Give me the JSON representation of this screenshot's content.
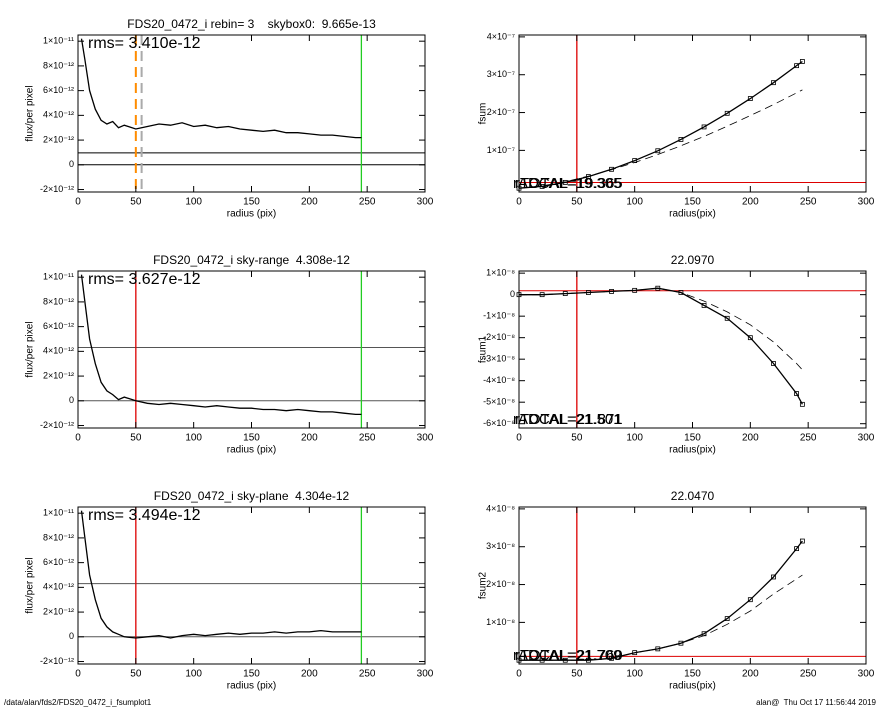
{
  "chart_data": [
    {
      "type": "line",
      "title": "FDS20_0472_i rebin= 3    skybox0:  9.665e-13",
      "xlabel": "radius (pix)",
      "ylabel": "flux/per pixel",
      "annotations": [
        "rms= 3.410e-12"
      ],
      "xlim": [
        0,
        300
      ],
      "xticks": [
        0,
        50,
        100,
        150,
        200,
        250,
        300
      ],
      "ylim": [
        -2.2e-12,
        1.05e-11
      ],
      "yticks": [
        {
          "value": -2e-12,
          "label": "-2×10⁻¹²"
        },
        0,
        {
          "value": 2e-12,
          "label": "2×10⁻¹²"
        },
        {
          "value": 4e-12,
          "label": "4×10⁻¹²"
        },
        {
          "value": 6e-12,
          "label": "6×10⁻¹²"
        },
        {
          "value": 8e-12,
          "label": "8×10⁻¹²"
        },
        {
          "value": 1e-11,
          "label": "1×10⁻¹¹"
        }
      ],
      "x": [
        3,
        6,
        10,
        15,
        20,
        25,
        30,
        35,
        40,
        50,
        60,
        70,
        80,
        90,
        100,
        110,
        120,
        130,
        140,
        150,
        160,
        170,
        180,
        190,
        200,
        210,
        220,
        230,
        240,
        245
      ],
      "series": [
        {
          "color": "#000000",
          "values": [
            1.02e-11,
            8.5e-12,
            6e-12,
            4.5e-12,
            3.6e-12,
            3.3e-12,
            3.5e-12,
            3e-12,
            3.2e-12,
            2.9e-12,
            3.1e-12,
            3.3e-12,
            3.2e-12,
            3.4e-12,
            3.1e-12,
            3.2e-12,
            3e-12,
            3.1e-12,
            2.9e-12,
            2.8e-12,
            2.7e-12,
            2.8e-12,
            2.6e-12,
            2.6e-12,
            2.5e-12,
            2.4e-12,
            2.4e-12,
            2.3e-12,
            2.2e-12,
            2.2e-12
          ]
        }
      ],
      "hlines": [
        {
          "value": 9.665e-13,
          "color": "#000000"
        },
        {
          "value": 0,
          "color": "#000000"
        }
      ],
      "vlines": [
        {
          "value": 50,
          "color": "#ff8c00",
          "dash": true
        },
        {
          "value": 55,
          "color": "#aaaaaa",
          "dash": true
        },
        {
          "value": 245,
          "color": "#22cc22"
        }
      ]
    },
    {
      "type": "line",
      "xlabel": "radius(pix)",
      "ylabel": "fsum",
      "annotations": [
        "rADCAL=19.365",
        "rTOTAL=19.305"
      ],
      "xlim": [
        0,
        300
      ],
      "xticks": [
        0,
        50,
        100,
        150,
        200,
        250,
        300
      ],
      "ylim": [
        -1e-08,
        4.05e-07
      ],
      "yticks": [
        {
          "value": 1e-07,
          "label": "1×10⁻⁷"
        },
        {
          "value": 2e-07,
          "label": "2×10⁻⁷"
        },
        {
          "value": 3e-07,
          "label": "3×10⁻⁷"
        },
        {
          "value": 4e-07,
          "label": "4×10⁻⁷"
        }
      ],
      "x": [
        0,
        20,
        40,
        60,
        80,
        100,
        120,
        140,
        160,
        180,
        200,
        220,
        240,
        245
      ],
      "series": [
        {
          "color": "#000000",
          "marker": "square",
          "values": [
            0,
            4.7e-09,
            1.54e-08,
            3.07e-08,
            5e-08,
            7.3e-08,
            9.9e-08,
            1.29e-07,
            1.62e-07,
            1.98e-07,
            2.37e-07,
            2.79e-07,
            3.24e-07,
            3.35e-07
          ]
        },
        {
          "color": "#000000",
          "dash": true,
          "values": [
            0,
            6e-09,
            1.7e-08,
            3.2e-08,
            4.9e-08,
            6.8e-08,
            8.9e-08,
            1.12e-07,
            1.37e-07,
            1.64e-07,
            1.92e-07,
            2.21e-07,
            2.52e-07,
            2.6e-07
          ]
        }
      ],
      "hlines": [
        {
          "value": 1.5e-08,
          "color": "#dd0000"
        }
      ],
      "vlines": [
        {
          "value": 50,
          "color": "#dd0000"
        }
      ]
    },
    {
      "type": "line",
      "title": "FDS20_0472_i sky-range  4.308e-12",
      "xlabel": "radius (pix)",
      "ylabel": "flux/per pixel",
      "annotations": [
        "rms= 3.627e-12"
      ],
      "xlim": [
        0,
        300
      ],
      "xticks": [
        0,
        50,
        100,
        150,
        200,
        250,
        300
      ],
      "ylim": [
        -2.2e-12,
        1.05e-11
      ],
      "yticks": [
        {
          "value": -2e-12,
          "label": "-2×10⁻¹²"
        },
        0,
        {
          "value": 2e-12,
          "label": "2×10⁻¹²"
        },
        {
          "value": 4e-12,
          "label": "4×10⁻¹²"
        },
        {
          "value": 6e-12,
          "label": "6×10⁻¹²"
        },
        {
          "value": 8e-12,
          "label": "8×10⁻¹²"
        },
        {
          "value": 1e-11,
          "label": "1×10⁻¹¹"
        }
      ],
      "x": [
        3,
        6,
        10,
        15,
        20,
        25,
        30,
        35,
        40,
        50,
        60,
        70,
        80,
        90,
        100,
        110,
        120,
        130,
        140,
        150,
        160,
        170,
        180,
        190,
        200,
        210,
        220,
        230,
        240,
        245
      ],
      "series": [
        {
          "color": "#000000",
          "values": [
            1.02e-11,
            8e-12,
            5e-12,
            3e-12,
            1.5e-12,
            8e-13,
            5e-13,
            1e-13,
            3e-13,
            0,
            -2e-13,
            -3e-13,
            -2e-13,
            -3e-13,
            -4e-13,
            -5e-13,
            -4e-13,
            -5e-13,
            -6e-13,
            -6e-13,
            -7e-13,
            -7e-13,
            -8e-13,
            -7e-13,
            -8e-13,
            -9e-13,
            -9e-13,
            -1e-12,
            -1.1e-12,
            -1.1e-12
          ]
        }
      ],
      "hlines": [
        {
          "value": 4.308e-12,
          "color": "#555555"
        },
        {
          "value": 0,
          "color": "#555555"
        }
      ],
      "vlines": [
        {
          "value": 50,
          "color": "#dd0000"
        },
        {
          "value": 245,
          "color": "#22cc22"
        }
      ]
    },
    {
      "type": "line",
      "title": "22.0970",
      "xlabel": "radius(pix)",
      "ylabel": "fsum1",
      "annotations": [
        "rADCAL=21.871",
        "rTOTAL=21.501"
      ],
      "xlim": [
        0,
        300
      ],
      "xticks": [
        0,
        50,
        100,
        150,
        200,
        250,
        300
      ],
      "ylim": [
        -6.2e-08,
        1.1e-08
      ],
      "yticks": [
        {
          "value": -6e-08,
          "label": "-6×10⁻⁸"
        },
        {
          "value": -5e-08,
          "label": "-5×10⁻⁸"
        },
        {
          "value": -4e-08,
          "label": "-4×10⁻⁸"
        },
        {
          "value": -3e-08,
          "label": "-3×10⁻⁸"
        },
        {
          "value": -2e-08,
          "label": "-2×10⁻⁸"
        },
        {
          "value": -1e-08,
          "label": "-1×10⁻⁸"
        },
        0,
        {
          "value": 1e-08,
          "label": "1×10⁻⁸"
        }
      ],
      "x": [
        0,
        20,
        40,
        60,
        80,
        100,
        120,
        140,
        160,
        180,
        200,
        220,
        240,
        245
      ],
      "series": [
        {
          "color": "#000000",
          "marker": "square",
          "values": [
            0,
            0,
            5e-10,
            1e-09,
            1.5e-09,
            2e-09,
            3e-09,
            1e-09,
            -5e-09,
            -1.1e-08,
            -2e-08,
            -3.2e-08,
            -4.6e-08,
            -5.1e-08
          ]
        },
        {
          "color": "#000000",
          "dash": true,
          "values": [
            0,
            0,
            5e-10,
            1e-09,
            1.5e-09,
            2e-09,
            3e-09,
            1e-09,
            -3e-09,
            -8e-09,
            -1.4e-08,
            -2.2e-08,
            -3.2e-08,
            -3.5e-08
          ]
        }
      ],
      "hlines": [
        {
          "value": 1.8e-09,
          "color": "#dd0000"
        }
      ],
      "vlines": [
        {
          "value": 50,
          "color": "#dd0000"
        }
      ]
    },
    {
      "type": "line",
      "title": "FDS20_0472_i sky-plane  4.304e-12",
      "xlabel": "radius (pix)",
      "ylabel": "flux/per pixel",
      "annotations": [
        "rms= 3.494e-12"
      ],
      "xlim": [
        0,
        300
      ],
      "xticks": [
        0,
        50,
        100,
        150,
        200,
        250,
        300
      ],
      "ylim": [
        -2.2e-12,
        1.05e-11
      ],
      "yticks": [
        {
          "value": -2e-12,
          "label": "-2×10⁻¹²"
        },
        0,
        {
          "value": 2e-12,
          "label": "2×10⁻¹²"
        },
        {
          "value": 4e-12,
          "label": "4×10⁻¹²"
        },
        {
          "value": 6e-12,
          "label": "6×10⁻¹²"
        },
        {
          "value": 8e-12,
          "label": "8×10⁻¹²"
        },
        {
          "value": 1e-11,
          "label": "1×10⁻¹¹"
        }
      ],
      "x": [
        3,
        6,
        10,
        15,
        20,
        25,
        30,
        35,
        40,
        50,
        60,
        70,
        80,
        90,
        100,
        110,
        120,
        130,
        140,
        150,
        160,
        170,
        180,
        190,
        200,
        210,
        220,
        230,
        240,
        245
      ],
      "series": [
        {
          "color": "#000000",
          "values": [
            1.02e-11,
            8e-12,
            5e-12,
            3e-12,
            1.5e-12,
            8e-13,
            4e-13,
            2e-13,
            0,
            -1e-13,
            0,
            1e-13,
            -1e-13,
            1e-13,
            2e-13,
            1e-13,
            2e-13,
            3e-13,
            2e-13,
            3e-13,
            3e-13,
            4e-13,
            3e-13,
            4e-13,
            4e-13,
            5e-13,
            4e-13,
            4e-13,
            4e-13,
            4e-13
          ]
        }
      ],
      "hlines": [
        {
          "value": 4.304e-12,
          "color": "#555555"
        },
        {
          "value": 0,
          "color": "#555555"
        }
      ],
      "vlines": [
        {
          "value": 50,
          "color": "#dd0000"
        },
        {
          "value": 245,
          "color": "#22cc22"
        }
      ]
    },
    {
      "type": "line",
      "title": "22.0470",
      "xlabel": "radius(pix)",
      "ylabel": "fsum2",
      "annotations": [
        "rADCAL=21.760",
        "rTOTAL=21.709"
      ],
      "xlim": [
        0,
        300
      ],
      "xticks": [
        0,
        50,
        100,
        150,
        200,
        250,
        300
      ],
      "ylim": [
        -1e-09,
        4.05e-08
      ],
      "yticks": [
        {
          "value": 1e-08,
          "label": "1×10⁻⁸"
        },
        {
          "value": 2e-08,
          "label": "2×10⁻⁸"
        },
        {
          "value": 3e-08,
          "label": "3×10⁻⁸"
        },
        {
          "value": 4e-08,
          "label": "4×10⁻⁸"
        }
      ],
      "x": [
        0,
        20,
        40,
        60,
        80,
        100,
        120,
        140,
        160,
        180,
        200,
        220,
        240,
        245
      ],
      "series": [
        {
          "color": "#000000",
          "marker": "square",
          "values": [
            0,
            0,
            0,
            0,
            5e-10,
            2e-09,
            3e-09,
            4.5e-09,
            7e-09,
            1.1e-08,
            1.6e-08,
            2.2e-08,
            2.95e-08,
            3.15e-08
          ]
        },
        {
          "color": "#000000",
          "dash": true,
          "values": [
            0,
            0,
            0,
            0,
            5e-10,
            2e-09,
            3e-09,
            4.5e-09,
            6.5e-09,
            9.5e-09,
            1.3e-08,
            1.75e-08,
            2.15e-08,
            2.25e-08
          ]
        }
      ],
      "hlines": [
        {
          "value": 1e-09,
          "color": "#dd0000"
        }
      ],
      "vlines": [
        {
          "value": 50,
          "color": "#dd0000"
        }
      ]
    }
  ],
  "footer": {
    "left": "/data/alan/fds2/FDS20_0472_i_fsumplot1",
    "right": "alan@  Thu Oct 17 11:56:44 2019"
  }
}
